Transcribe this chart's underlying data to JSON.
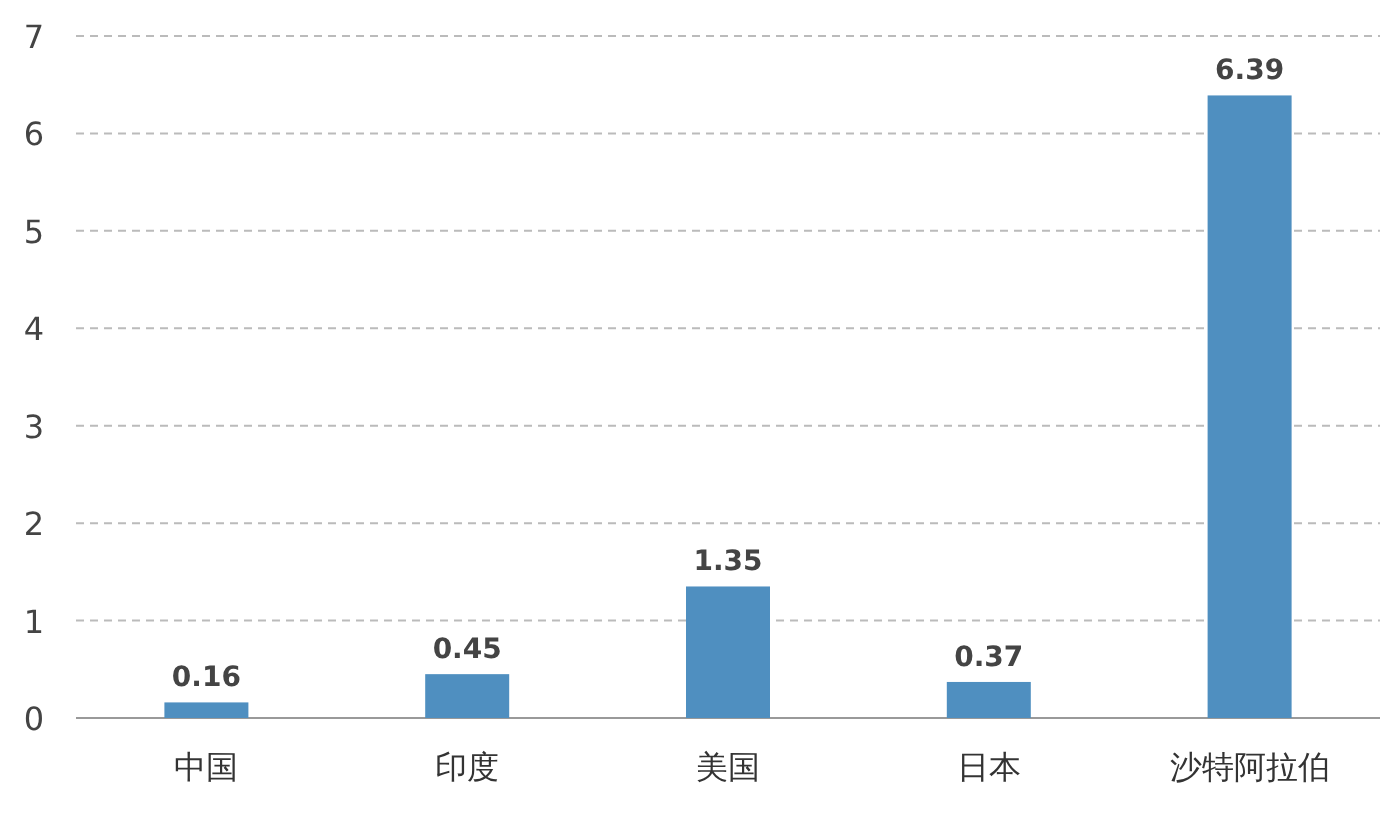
{
  "chart_data": {
    "type": "bar",
    "categories": [
      "中国",
      "印度",
      "美国",
      "日本",
      "沙特阿拉伯"
    ],
    "values": [
      0.16,
      0.45,
      1.35,
      0.37,
      6.39
    ],
    "color": "#4f8fc0",
    "ylim": [
      0,
      7
    ],
    "yticks": [
      0,
      1,
      2,
      3,
      4,
      5,
      6,
      7
    ],
    "grid": "y",
    "data_labels": true
  }
}
